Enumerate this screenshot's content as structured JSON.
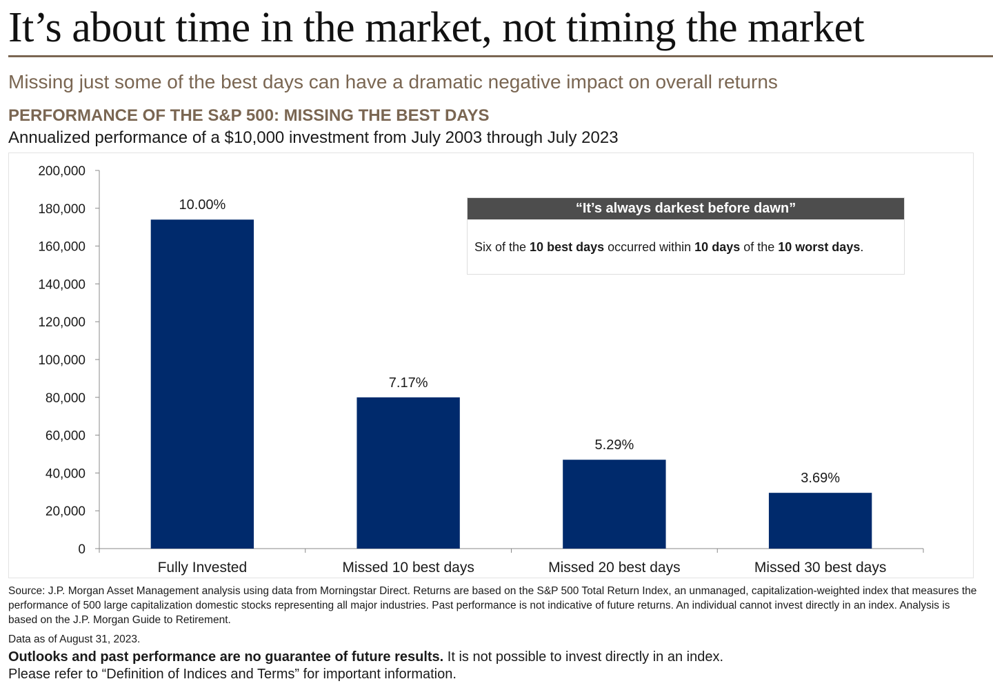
{
  "header": {
    "title": "It’s about time in the market, not timing the market",
    "subtitle": "Missing just some of the best days can have a dramatic negative impact on overall returns"
  },
  "chart_heading": "PERFORMANCE OF THE S&P 500: MISSING THE BEST DAYS",
  "chart_subheading": "Annualized performance of a $10,000 investment from July 2003 through July 2023",
  "colors": {
    "bar": "#002a6c",
    "brand_brown": "#7a6652",
    "callout_header_bg": "#4d4d4d"
  },
  "chart_data": {
    "type": "bar",
    "categories": [
      "Fully Invested",
      "Missed 10 best days",
      "Missed 20 best days",
      "Missed 30 best days"
    ],
    "values": [
      174000,
      80000,
      47000,
      29500
    ],
    "data_labels": [
      "10.00%",
      "7.17%",
      "5.29%",
      "3.69%"
    ],
    "ylim": [
      0,
      200000
    ],
    "y_ticks": [
      "0",
      "20,000",
      "40,000",
      "60,000",
      "80,000",
      "100,000",
      "120,000",
      "140,000",
      "160,000",
      "180,000",
      "200,000"
    ],
    "xlabel": "",
    "ylabel": "",
    "grid": false,
    "legend": false
  },
  "callout": {
    "title": "“It’s always darkest before dawn”",
    "text_parts": [
      "Six of the ",
      "10 best days",
      " occurred within ",
      "10 days",
      " of the ",
      "10 worst days",
      "."
    ]
  },
  "source": "Source: J.P. Morgan Asset Management analysis using data from Morningstar Direct. Returns are based on the S&P 500 Total Return Index, an unmanaged, capitalization-weighted index that measures the performance of 500 large capitalization domestic stocks representing all major industries. Past performance is not indicative of future returns. An individual cannot invest directly in an index. Analysis is based on the J.P. Morgan Guide to Retirement.",
  "data_as_of": "Data as of August 31, 2023.",
  "disclaimer": {
    "bold": "Outlooks and past performance are no guarantee of future results.",
    "rest": " It is not possible to invest directly in an index.",
    "line2": "Please refer to “Definition of Indices and Terms” for important information."
  }
}
